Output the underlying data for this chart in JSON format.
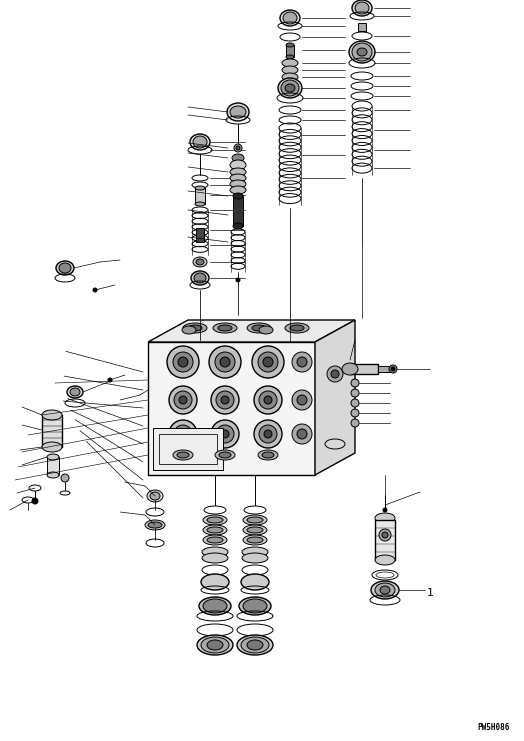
{
  "figsize": [
    5.24,
    7.41
  ],
  "dpi": 100,
  "bg_color": "#ffffff",
  "watermark": "PW5H086",
  "lw": 0.7,
  "lw_thick": 1.0,
  "black": "#000000",
  "gray_light": "#e8e8e8",
  "gray_med": "#aaaaaa",
  "gray_dark": "#555555"
}
